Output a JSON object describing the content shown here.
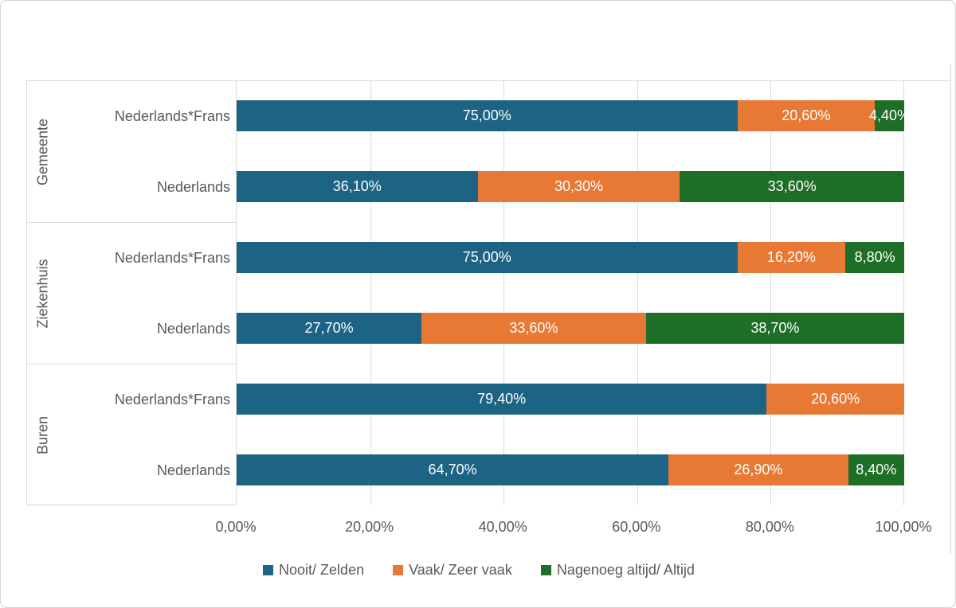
{
  "chart_data": {
    "type": "bar",
    "orientation": "horizontal",
    "stacked": true,
    "title": "",
    "series": [
      {
        "name": "Nooit/ Zelden",
        "color": "#1C6384"
      },
      {
        "name": "Vaak/ Zeer vaak",
        "color": "#E87934"
      },
      {
        "name": "Nagenoeg altijd/ Altijd",
        "color": "#1F6E28"
      }
    ],
    "categories": [
      {
        "group": "Gemeente",
        "label": "Nederlands*Frans",
        "values": [
          75.0,
          20.6,
          4.4
        ],
        "value_labels": [
          "75,00%",
          "20,60%",
          "4,40%"
        ]
      },
      {
        "group": "Gemeente",
        "label": "Nederlands",
        "values": [
          36.1,
          30.3,
          33.6
        ],
        "value_labels": [
          "36,10%",
          "30,30%",
          "33,60%"
        ]
      },
      {
        "group": "Ziekenhuis",
        "label": "Nederlands*Frans",
        "values": [
          75.0,
          16.2,
          8.8
        ],
        "value_labels": [
          "75,00%",
          "16,20%",
          "8,80%"
        ]
      },
      {
        "group": "Ziekenhuis",
        "label": "Nederlands",
        "values": [
          27.7,
          33.6,
          38.7
        ],
        "value_labels": [
          "27,70%",
          "33,60%",
          "38,70%"
        ]
      },
      {
        "group": "Buren",
        "label": "Nederlands*Frans",
        "values": [
          79.4,
          20.6,
          0.0
        ],
        "value_labels": [
          "79,40%",
          "20,60%",
          ""
        ]
      },
      {
        "group": "Buren",
        "label": "Nederlands",
        "values": [
          64.7,
          26.9,
          8.4
        ],
        "value_labels": [
          "64,70%",
          "26,90%",
          "8,40%"
        ]
      }
    ],
    "groups": [
      "Gemeente",
      "Ziekenhuis",
      "Buren"
    ],
    "x_axis": {
      "min": 0,
      "max": 100,
      "ticks": [
        "0,00%",
        "20,00%",
        "40,00%",
        "60,00%",
        "80,00%",
        "100,00%"
      ],
      "gridlines": true
    },
    "legend": {
      "position": "bottom",
      "entries": [
        "Nooit/ Zelden",
        "Vaak/ Zeer vaak",
        "Nagenoeg altijd/ Altijd"
      ]
    },
    "colors": {
      "grid": "#D9D9D9",
      "axis_text": "#595959",
      "data_label_text": "#FFFFFF",
      "background": "#FFFFFF"
    }
  }
}
